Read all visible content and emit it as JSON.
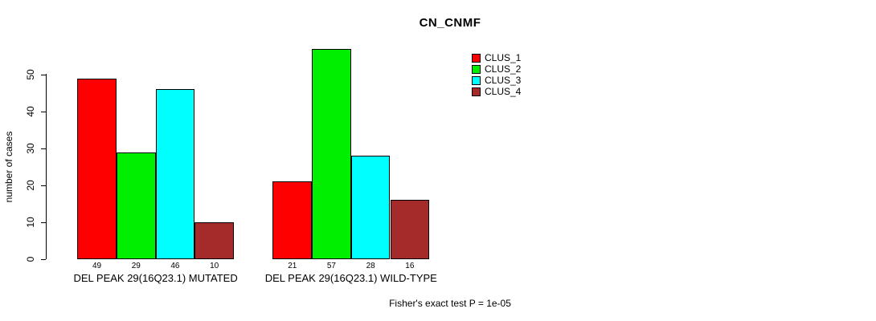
{
  "chart_data": {
    "type": "bar",
    "title": "CN_CNMF",
    "ylabel": "number of cases",
    "xlabel": "",
    "ylim": [
      0,
      50
    ],
    "yticks": [
      0,
      10,
      20,
      30,
      40,
      50
    ],
    "grid": false,
    "legend_position": "top-right",
    "bar_border_color": "#000000",
    "value_labels_shown": true,
    "categories": [
      "DEL PEAK 29(16Q23.1) MUTATED",
      "DEL PEAK 29(16Q23.1) WILD-TYPE"
    ],
    "series": [
      {
        "name": "CLUS_1",
        "color": "#ff0000",
        "values": [
          49,
          21
        ]
      },
      {
        "name": "CLUS_2",
        "color": "#00ee00",
        "values": [
          29,
          57
        ]
      },
      {
        "name": "CLUS_3",
        "color": "#00ffff",
        "values": [
          46,
          28
        ]
      },
      {
        "name": "CLUS_4",
        "color": "#a52a2a",
        "values": [
          10,
          16
        ]
      }
    ],
    "annotation": "Fisher's exact test P = 1e-05"
  }
}
